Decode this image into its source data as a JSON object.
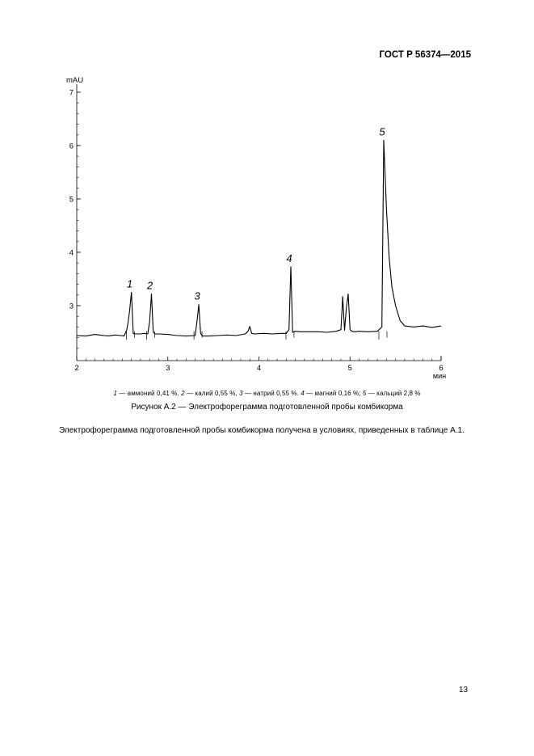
{
  "header": {
    "doc_code": "ГОСТ Р 56374—2015"
  },
  "chart_data": {
    "type": "line",
    "ylabel": "mAU",
    "xlabel": "мин",
    "xlim": [
      2,
      6
    ],
    "ylim": [
      2,
      7
    ],
    "x_ticks": [
      "2",
      "3",
      "4",
      "5",
      "6"
    ],
    "y_ticks": [
      "3",
      "4",
      "5",
      "6",
      "7"
    ],
    "grid": false,
    "series": [
      {
        "x": [
          2.0,
          2.1,
          2.2,
          2.3,
          2.35,
          2.42,
          2.48,
          2.52,
          2.55,
          2.565,
          2.58,
          2.6,
          2.62,
          2.64,
          2.66,
          2.7,
          2.74,
          2.78,
          2.8,
          2.82,
          2.84,
          2.86,
          2.9,
          3.0,
          3.1,
          3.2,
          3.3,
          3.32,
          3.34,
          3.36,
          3.38,
          3.45,
          3.55,
          3.65,
          3.75,
          3.85,
          3.88,
          3.9,
          3.92,
          3.95,
          4.05,
          4.15,
          4.25,
          4.3,
          4.33,
          4.35,
          4.37,
          4.4,
          4.45,
          4.55,
          4.65,
          4.75,
          4.85,
          4.9,
          4.92,
          4.94,
          4.96,
          4.98,
          5.0,
          5.02,
          5.05,
          5.1,
          5.2,
          5.3,
          5.35,
          5.37,
          5.4,
          5.43,
          5.46,
          5.5,
          5.55,
          5.6,
          5.7,
          5.8,
          5.9,
          6.0
        ],
        "y": [
          2.44,
          2.43,
          2.46,
          2.44,
          2.43,
          2.45,
          2.44,
          2.43,
          2.55,
          2.7,
          2.9,
          3.25,
          2.48,
          2.47,
          2.47,
          2.47,
          2.48,
          2.47,
          2.7,
          3.22,
          2.5,
          2.47,
          2.47,
          2.46,
          2.44,
          2.43,
          2.44,
          2.7,
          3.02,
          2.48,
          2.43,
          2.43,
          2.44,
          2.45,
          2.44,
          2.47,
          2.52,
          2.61,
          2.48,
          2.47,
          2.48,
          2.47,
          2.48,
          2.48,
          2.55,
          3.73,
          2.5,
          2.52,
          2.51,
          2.51,
          2.51,
          2.5,
          2.52,
          2.55,
          3.17,
          2.54,
          2.95,
          3.22,
          2.55,
          2.52,
          2.51,
          2.52,
          2.51,
          2.52,
          2.6,
          6.1,
          4.8,
          3.9,
          3.35,
          3.0,
          2.72,
          2.62,
          2.6,
          2.62,
          2.59,
          2.62
        ]
      }
    ],
    "peak_labels": [
      {
        "label": "1",
        "x": 2.6,
        "y": 3.25
      },
      {
        "label": "2",
        "x": 2.82,
        "y": 3.22
      },
      {
        "label": "3",
        "x": 3.34,
        "y": 3.02
      },
      {
        "label": "4",
        "x": 4.35,
        "y": 3.73
      },
      {
        "label": "5",
        "x": 5.37,
        "y": 6.1
      }
    ]
  },
  "legend": [
    {
      "num": "1",
      "text": " — аммоний 0,41 %. "
    },
    {
      "num": "2",
      "text": " — калий 0,55 %, "
    },
    {
      "num": "3",
      "text": " — натрий 0,55 %. "
    },
    {
      "num": "4",
      "text": " — магний 0,16 %; "
    },
    {
      "num": "5",
      "text": " — кальций 2,8 %"
    }
  ],
  "caption": "Рисунок А.2 — Электрофореграмма подготовленной пробы комбикорма",
  "paragraph": "Электрофореграмма подготовленной пробы комбикорма получена в условиях, приведенных в таблице А.1.",
  "page_number": "13"
}
